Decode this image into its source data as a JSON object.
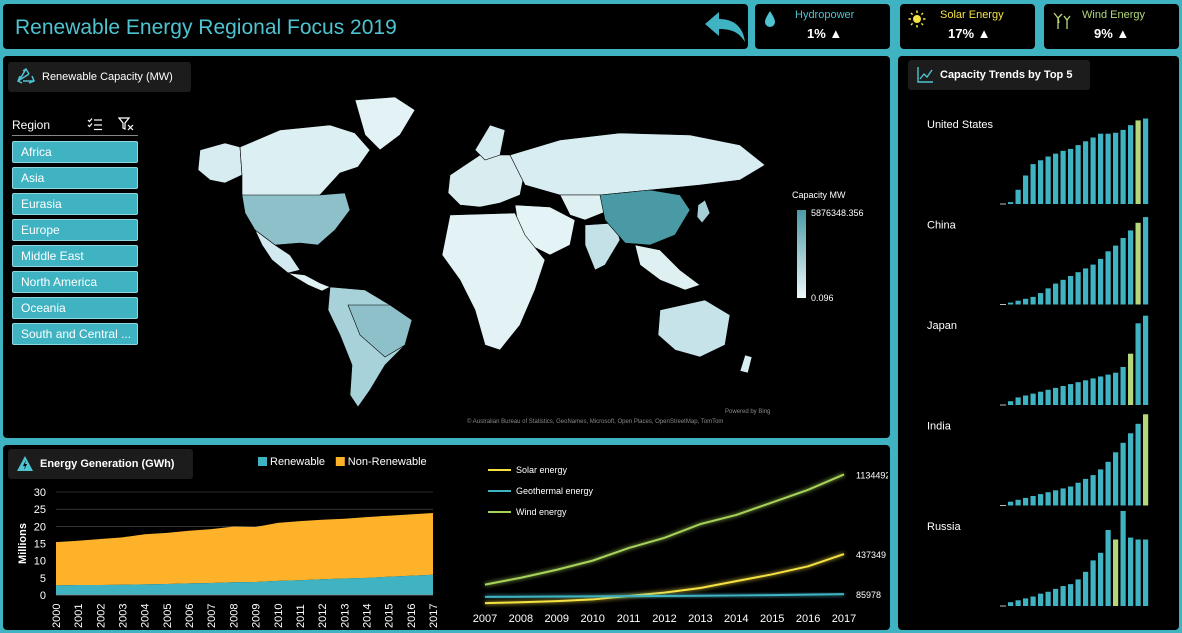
{
  "header": {
    "title": "Renewable Energy Regional Focus 2019"
  },
  "kpis": [
    {
      "label": "Hydropower",
      "value": "1%",
      "icon": "water-drop-icon",
      "color": "#4ec3d1"
    },
    {
      "label": "Solar Energy",
      "value": "17%",
      "icon": "sun-icon",
      "color": "#f5e142"
    },
    {
      "label": "Wind Energy",
      "value": "9%",
      "icon": "wind-turbine-icon",
      "color": "#b5d77c"
    }
  ],
  "map_panel": {
    "title": "Renewable Capacity (MW)",
    "slicer_title": "Region",
    "regions": [
      "Africa",
      "Asia",
      "Eurasia",
      "Europe",
      "Middle East",
      "North America",
      "Oceania",
      "South and Central ..."
    ],
    "legend_title": "Capacity MW",
    "legend_max": "5876348.356",
    "legend_min": "0.096",
    "powered_by": "Powered by Bing",
    "credits": "© Australian Bureau of Statistics, GeoNames, Microsoft, Open Places, OpenStreetMap, TomTom"
  },
  "generation_panel": {
    "title": "Energy Generation (GWh)"
  },
  "trends_panel": {
    "title": "Capacity Trends by Top 5"
  },
  "chart_data": [
    {
      "type": "area",
      "title": "",
      "ylabel": "Millions",
      "x": [
        "2000",
        "2001",
        "2002",
        "2003",
        "2004",
        "2005",
        "2006",
        "2007",
        "2008",
        "2009",
        "2010",
        "2011",
        "2012",
        "2013",
        "2014",
        "2015",
        "2016",
        "2017"
      ],
      "ylim": [
        0,
        30
      ],
      "yticks": [
        0,
        5,
        10,
        15,
        20,
        25,
        30
      ],
      "legend": "top",
      "series": [
        {
          "name": "Renewable",
          "color": "#3fb3c2",
          "values": [
            2.8,
            2.9,
            2.9,
            3.0,
            3.1,
            3.2,
            3.4,
            3.5,
            3.7,
            3.8,
            4.1,
            4.3,
            4.6,
            4.8,
            5.0,
            5.3,
            5.6,
            5.9
          ]
        },
        {
          "name": "Non-Renewable",
          "color": "#fdb22a",
          "values": [
            12.6,
            12.9,
            13.4,
            13.8,
            14.6,
            14.9,
            15.3,
            15.7,
            16.2,
            16.0,
            16.9,
            17.2,
            17.3,
            17.4,
            17.7,
            17.8,
            17.9,
            18.0
          ]
        }
      ]
    },
    {
      "type": "line",
      "title": "",
      "x": [
        "2007",
        "2008",
        "2009",
        "2010",
        "2011",
        "2012",
        "2013",
        "2014",
        "2015",
        "2016",
        "2017"
      ],
      "ylim": [
        0,
        1200000
      ],
      "legend": "top-left",
      "series": [
        {
          "name": "Solar energy",
          "color": "#f5e142",
          "values": [
            8000,
            15000,
            25000,
            40000,
            70000,
            100000,
            140000,
            200000,
            260000,
            330000,
            437349
          ],
          "end_label": "437349"
        },
        {
          "name": "Geothermal energy",
          "color": "#3fb3c2",
          "values": [
            62000,
            64000,
            66000,
            67000,
            69000,
            70000,
            72000,
            75000,
            78000,
            82000,
            85978
          ],
          "end_label": "85978"
        },
        {
          "name": "Wind energy",
          "color": "#a7d35a",
          "values": [
            170000,
            230000,
            300000,
            380000,
            490000,
            580000,
            700000,
            780000,
            890000,
            1000000,
            1134492
          ],
          "end_label": "1134492"
        }
      ]
    },
    {
      "type": "bar",
      "title": "",
      "series": [
        {
          "name": "United States",
          "highlight_index": 17,
          "values": [
            2,
            15,
            30,
            42,
            46,
            50,
            53,
            56,
            58,
            62,
            66,
            70,
            74,
            74,
            75,
            78,
            83,
            88,
            90
          ]
        },
        {
          "name": "China",
          "highlight_index": 17,
          "values": [
            2,
            4,
            6,
            8,
            12,
            17,
            22,
            26,
            30,
            34,
            38,
            42,
            48,
            56,
            62,
            70,
            78,
            86,
            92
          ]
        },
        {
          "name": "Japan",
          "highlight_index": 16,
          "values": [
            4,
            8,
            10,
            12,
            14,
            16,
            18,
            20,
            22,
            24,
            26,
            28,
            30,
            32,
            34,
            40,
            54,
            86,
            94
          ]
        },
        {
          "name": "India",
          "highlight_index": 18,
          "values": [
            4,
            6,
            8,
            10,
            12,
            14,
            16,
            18,
            20,
            24,
            28,
            32,
            38,
            46,
            56,
            66,
            76,
            86,
            96
          ]
        },
        {
          "name": "Russia",
          "highlight_index": 14,
          "values": [
            4,
            6,
            8,
            10,
            13,
            15,
            18,
            21,
            23,
            28,
            36,
            48,
            56,
            80,
            70,
            100,
            72,
            70,
            70
          ]
        }
      ]
    }
  ]
}
